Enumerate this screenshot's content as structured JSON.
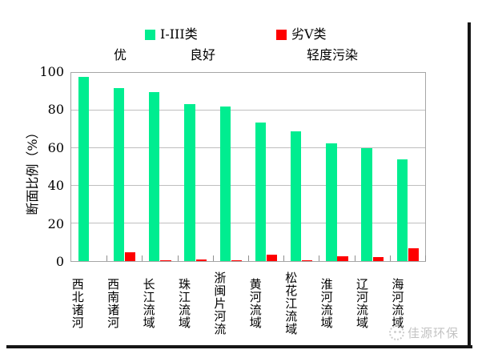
{
  "watermark": {
    "text": "佳源环保"
  },
  "chart_data": {
    "type": "bar",
    "title": "",
    "categories": [
      "西北诸河",
      "西南诸河",
      "长江流域",
      "珠江流域",
      "浙闽片河流",
      "黄河流域",
      "松花江流域",
      "淮河流域",
      "辽河流域",
      "海河流域"
    ],
    "series": [
      {
        "name": "I-III类",
        "color": "#00ed90",
        "values": [
          98,
          92,
          90,
          83.5,
          82,
          73.5,
          69,
          62.5,
          60,
          54
        ]
      },
      {
        "name": "劣V类",
        "color": "#fe0000",
        "values": [
          0,
          4.5,
          0.5,
          1,
          0.5,
          3.5,
          0.5,
          2.5,
          2,
          7
        ]
      }
    ],
    "annotations": [
      "优",
      "良好",
      "轻度污染"
    ],
    "xlabel": "",
    "ylabel": "断面比例（%）",
    "ylim": [
      0,
      100
    ],
    "y_ticks": [
      0,
      20,
      40,
      60,
      80,
      100
    ],
    "grid": true,
    "legend_position": "top"
  }
}
